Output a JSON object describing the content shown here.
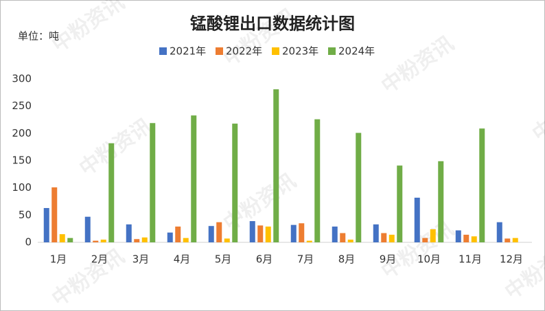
{
  "chart_data": {
    "type": "bar",
    "title": "锰酸锂出口数据统计图",
    "unit_label": "单位：吨",
    "watermark": "中粉资讯",
    "categories": [
      "1月",
      "2月",
      "3月",
      "4月",
      "5月",
      "6月",
      "7月",
      "8月",
      "9月",
      "10月",
      "11月",
      "12月"
    ],
    "series": [
      {
        "name": "2021年",
        "color": "#4472c4",
        "values": [
          63,
          47,
          33,
          18,
          30,
          39,
          32,
          29,
          33,
          82,
          22,
          37
        ]
      },
      {
        "name": "2022年",
        "color": "#ed7d31",
        "values": [
          101,
          3,
          6,
          29,
          37,
          31,
          35,
          17,
          17,
          8,
          14,
          7
        ]
      },
      {
        "name": "2023年",
        "color": "#ffc000",
        "values": [
          15,
          5,
          9,
          8,
          7,
          29,
          3,
          5,
          14,
          24,
          11,
          8
        ]
      },
      {
        "name": "2024年",
        "color": "#70ad47",
        "values": [
          8,
          182,
          219,
          233,
          218,
          281,
          226,
          201,
          141,
          149,
          209,
          null
        ]
      }
    ],
    "ylim": [
      0,
      300
    ],
    "yticks": [
      0,
      50,
      100,
      150,
      200,
      250,
      300
    ],
    "grid": false
  }
}
